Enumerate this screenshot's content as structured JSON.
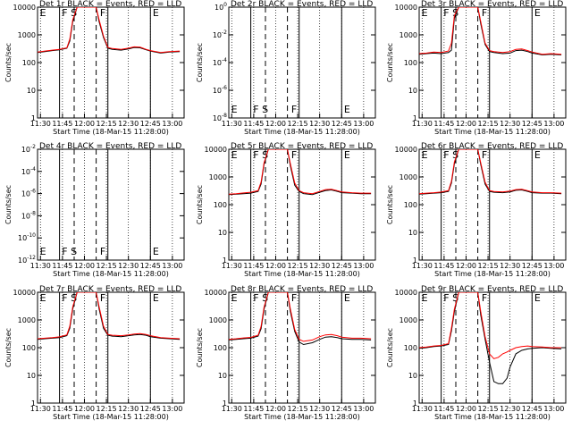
{
  "figure": {
    "y_axis_label": "Counts/sec",
    "x_axis_label": "Start Time (18-Mar-15 11:28:00)",
    "x_ticks": [
      "11:30",
      "11:45",
      "12:00",
      "12:15",
      "12:30",
      "12:45",
      "13:00"
    ],
    "colors": {
      "events": "#000000",
      "lld": "#ff0000"
    }
  },
  "chart_data": [
    {
      "type": "line",
      "title": "Det 1r  BLACK = Events, RED = LLD",
      "scale": "log",
      "y_ticks": [
        "1",
        "10",
        "100",
        "1000",
        "10000"
      ],
      "ylim": [
        1,
        10000
      ],
      "markers": [
        "E",
        "F",
        "S",
        "F",
        "E"
      ],
      "x": [
        "11:28",
        "11:33",
        "11:38",
        "11:43",
        "11:48",
        "11:50",
        "11:52",
        "11:55",
        "11:58",
        "12:00",
        "12:05",
        "12:08",
        "12:10",
        "12:13",
        "12:16",
        "12:19",
        "12:25",
        "12:30",
        "12:34",
        "12:38",
        "12:42",
        "12:45",
        "12:52",
        "12:58",
        "13:05"
      ],
      "series": [
        {
          "name": "Events",
          "values": [
            230,
            250,
            270,
            290,
            330,
            600,
            3000,
            10000,
            10000,
            10000,
            10000,
            10000,
            3000,
            800,
            330,
            300,
            280,
            310,
            350,
            340,
            290,
            260,
            220,
            240,
            250
          ]
        },
        {
          "name": "LLD",
          "values": [
            240,
            260,
            280,
            300,
            340,
            700,
            3500,
            10000,
            10000,
            10000,
            10000,
            10000,
            3500,
            900,
            350,
            320,
            300,
            330,
            370,
            360,
            300,
            270,
            230,
            250,
            260
          ]
        }
      ]
    },
    {
      "type": "line",
      "title": "Det 2r  BLACK = Events, RED = LLD",
      "scale": "log",
      "y_ticks": [
        "10^0",
        "10^-2",
        "10^-4",
        "10^-6",
        "10^-8"
      ],
      "ylim": [
        1e-08,
        1
      ],
      "markers": [
        "E",
        "F",
        "S",
        "F",
        "E"
      ],
      "x": [],
      "series": []
    },
    {
      "type": "line",
      "title": "Det 3r  BLACK = Events, RED = LLD",
      "scale": "log",
      "y_ticks": [
        "1",
        "10",
        "100",
        "1000",
        "10000"
      ],
      "ylim": [
        1,
        10000
      ],
      "markers": [
        "E",
        "F",
        "S",
        "F",
        "E"
      ],
      "x": [
        "11:28",
        "11:33",
        "11:38",
        "11:43",
        "11:48",
        "11:50",
        "11:52",
        "11:55",
        "11:58",
        "12:00",
        "12:05",
        "12:08",
        "12:10",
        "12:13",
        "12:16",
        "12:19",
        "12:25",
        "12:30",
        "12:34",
        "12:38",
        "12:42",
        "12:45",
        "12:52",
        "12:58",
        "13:05"
      ],
      "series": [
        {
          "name": "Events",
          "values": [
            200,
            210,
            220,
            210,
            230,
            280,
            4000,
            10000,
            10000,
            10000,
            10000,
            10000,
            2500,
            450,
            250,
            230,
            210,
            220,
            270,
            280,
            250,
            220,
            190,
            200,
            190
          ]
        },
        {
          "name": "LLD",
          "values": [
            210,
            220,
            240,
            230,
            260,
            500,
            5000,
            10000,
            10000,
            10000,
            10000,
            10000,
            3000,
            500,
            270,
            250,
            230,
            250,
            300,
            310,
            270,
            240,
            200,
            210,
            200
          ]
        }
      ]
    },
    {
      "type": "line",
      "title": "Det 4r  BLACK = Events, RED = LLD",
      "scale": "log",
      "y_ticks": [
        "10^-2",
        "10^-4",
        "10^-6",
        "10^-8",
        "10^-10",
        "10^-12"
      ],
      "ylim": [
        1e-12,
        0.01
      ],
      "markers": [
        "E",
        "F",
        "S",
        "F",
        "E"
      ],
      "x": [],
      "series": []
    },
    {
      "type": "line",
      "title": "Det 5r  BLACK = Events, RED = LLD",
      "scale": "log",
      "y_ticks": [
        "1",
        "10",
        "100",
        "1000",
        "10000"
      ],
      "ylim": [
        1,
        10000
      ],
      "markers": [
        "E",
        "F",
        "S",
        "F",
        "E"
      ],
      "x": [
        "11:28",
        "11:33",
        "11:38",
        "11:43",
        "11:48",
        "11:50",
        "11:52",
        "11:55",
        "11:58",
        "12:00",
        "12:05",
        "12:08",
        "12:10",
        "12:13",
        "12:16",
        "12:19",
        "12:25",
        "12:30",
        "12:34",
        "12:38",
        "12:42",
        "12:45",
        "12:52",
        "12:58",
        "13:05"
      ],
      "series": [
        {
          "name": "Events",
          "values": [
            230,
            240,
            250,
            260,
            300,
            550,
            2800,
            10000,
            10000,
            10000,
            10000,
            10000,
            2500,
            500,
            300,
            250,
            230,
            280,
            320,
            340,
            300,
            270,
            260,
            250,
            250
          ]
        },
        {
          "name": "LLD",
          "values": [
            240,
            250,
            265,
            280,
            320,
            650,
            3200,
            10000,
            10000,
            10000,
            10000,
            10000,
            3000,
            600,
            320,
            270,
            250,
            300,
            350,
            360,
            320,
            290,
            270,
            260,
            260
          ]
        }
      ]
    },
    {
      "type": "line",
      "title": "Det 6r  BLACK = Events, RED = LLD",
      "scale": "log",
      "y_ticks": [
        "1",
        "10",
        "100",
        "1000",
        "10000"
      ],
      "ylim": [
        1,
        10000
      ],
      "markers": [
        "E",
        "F",
        "S",
        "F",
        "E"
      ],
      "x": [
        "11:28",
        "11:33",
        "11:38",
        "11:43",
        "11:48",
        "11:50",
        "11:52",
        "11:55",
        "11:58",
        "12:00",
        "12:05",
        "12:08",
        "12:10",
        "12:13",
        "12:16",
        "12:19",
        "12:25",
        "12:30",
        "12:34",
        "12:38",
        "12:42",
        "12:45",
        "12:52",
        "12:58",
        "13:05"
      ],
      "series": [
        {
          "name": "Events",
          "values": [
            240,
            250,
            260,
            270,
            300,
            600,
            3000,
            10000,
            10000,
            10000,
            10000,
            10000,
            2800,
            550,
            300,
            280,
            270,
            290,
            330,
            340,
            300,
            270,
            260,
            260,
            250
          ]
        },
        {
          "name": "LLD",
          "values": [
            250,
            260,
            270,
            285,
            320,
            700,
            3500,
            10000,
            10000,
            10000,
            10000,
            10000,
            3200,
            650,
            320,
            300,
            290,
            310,
            350,
            360,
            320,
            290,
            270,
            270,
            260
          ]
        }
      ]
    },
    {
      "type": "line",
      "title": "Det 7r  BLACK = Events, RED = LLD",
      "scale": "log",
      "y_ticks": [
        "1",
        "10",
        "100",
        "1000",
        "10000"
      ],
      "ylim": [
        1,
        10000
      ],
      "markers": [
        "E",
        "F",
        "S",
        "F",
        "E"
      ],
      "x": [
        "11:28",
        "11:33",
        "11:38",
        "11:43",
        "11:48",
        "11:50",
        "11:52",
        "11:55",
        "11:58",
        "12:00",
        "12:05",
        "12:08",
        "12:10",
        "12:13",
        "12:16",
        "12:19",
        "12:25",
        "12:30",
        "12:34",
        "12:38",
        "12:42",
        "12:45",
        "12:52",
        "12:58",
        "13:05"
      ],
      "series": [
        {
          "name": "Events",
          "values": [
            200,
            210,
            220,
            230,
            270,
            500,
            2500,
            10000,
            10000,
            10000,
            10000,
            10000,
            2500,
            500,
            280,
            260,
            250,
            270,
            290,
            300,
            280,
            250,
            220,
            210,
            200
          ]
        },
        {
          "name": "LLD",
          "values": [
            210,
            220,
            230,
            245,
            290,
            600,
            3000,
            10000,
            10000,
            10000,
            10000,
            10000,
            3000,
            600,
            300,
            280,
            270,
            290,
            310,
            320,
            300,
            270,
            230,
            220,
            210
          ]
        }
      ]
    },
    {
      "type": "line",
      "title": "Det 8r  BLACK = Events, RED = LLD",
      "scale": "log",
      "y_ticks": [
        "1",
        "10",
        "100",
        "1000",
        "10000"
      ],
      "ylim": [
        1,
        10000
      ],
      "markers": [
        "E",
        "F",
        "S",
        "F",
        "E"
      ],
      "x": [
        "11:28",
        "11:33",
        "11:38",
        "11:43",
        "11:48",
        "11:50",
        "11:52",
        "11:55",
        "11:58",
        "12:00",
        "12:05",
        "12:08",
        "12:10",
        "12:13",
        "12:16",
        "12:19",
        "12:25",
        "12:30",
        "12:34",
        "12:38",
        "12:42",
        "12:45",
        "12:52",
        "12:58",
        "13:05"
      ],
      "series": [
        {
          "name": "Events",
          "values": [
            190,
            200,
            210,
            220,
            260,
            480,
            2400,
            10000,
            10000,
            10000,
            10000,
            10000,
            2000,
            380,
            160,
            130,
            150,
            200,
            240,
            250,
            230,
            210,
            200,
            200,
            190
          ]
        },
        {
          "name": "LLD",
          "values": [
            200,
            210,
            225,
            235,
            280,
            580,
            2900,
            10000,
            10000,
            10000,
            10000,
            10000,
            2500,
            450,
            200,
            170,
            190,
            250,
            290,
            300,
            270,
            240,
            220,
            220,
            210
          ]
        }
      ]
    },
    {
      "type": "line",
      "title": "Det 9r  BLACK = Events, RED = LLD",
      "scale": "log",
      "y_ticks": [
        "1",
        "10",
        "100",
        "1000",
        "10000"
      ],
      "ylim": [
        1,
        10000
      ],
      "markers": [
        "E",
        "F",
        "S",
        "F",
        "E"
      ],
      "x": [
        "11:28",
        "11:33",
        "11:38",
        "11:43",
        "11:48",
        "11:50",
        "11:52",
        "11:55",
        "11:58",
        "12:00",
        "12:05",
        "12:08",
        "12:10",
        "12:13",
        "12:16",
        "12:19",
        "12:22",
        "12:25",
        "12:28",
        "12:30",
        "12:34",
        "12:38",
        "12:42",
        "12:45",
        "12:52",
        "12:58",
        "13:05"
      ],
      "series": [
        {
          "name": "Events",
          "values": [
            95,
            100,
            110,
            115,
            130,
            400,
            2000,
            10000,
            10000,
            10000,
            10000,
            10000,
            1500,
            200,
            30,
            6,
            5,
            5,
            8,
            20,
            60,
            80,
            90,
            95,
            100,
            95,
            90
          ]
        },
        {
          "name": "LLD",
          "values": [
            100,
            105,
            115,
            120,
            140,
            500,
            2500,
            10000,
            10000,
            10000,
            10000,
            10000,
            2000,
            250,
            60,
            40,
            45,
            60,
            70,
            80,
            100,
            110,
            115,
            110,
            105,
            100,
            100
          ]
        }
      ]
    }
  ]
}
